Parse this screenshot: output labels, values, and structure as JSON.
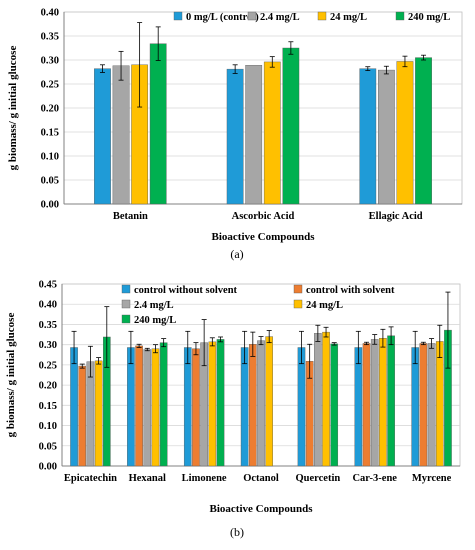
{
  "chart_data": [
    {
      "type": "bar",
      "caption": "(a)",
      "xlabel": "Bioactive Compounds",
      "ylabel": "g biomass/ g initial glucose",
      "ylim": [
        0,
        0.4
      ],
      "yticks": [
        "0.00",
        "0.05",
        "0.10",
        "0.15",
        "0.20",
        "0.25",
        "0.30",
        "0.35",
        "0.40"
      ],
      "grid": true,
      "legend_position": "top-right",
      "categories": [
        "Betanin",
        "Ascorbic Acid",
        "Ellagic Acid"
      ],
      "series": [
        {
          "name": "0 mg/L (control)",
          "color": "#1f9bd7",
          "values": [
            0.282,
            0.281,
            0.282
          ],
          "errors": [
            0.008,
            0.009,
            0.004
          ]
        },
        {
          "name": "2.4 mg/L",
          "color": "#a6a6a6",
          "values": [
            0.288,
            0.289,
            0.279
          ],
          "errors": [
            0.03,
            0.0,
            0.008
          ]
        },
        {
          "name": "24 mg/L",
          "color": "#ffc000",
          "values": [
            0.29,
            0.296,
            0.297
          ],
          "errors": [
            0.088,
            0.011,
            0.011
          ]
        },
        {
          "name": "240 mg/L",
          "color": "#00b050",
          "values": [
            0.334,
            0.325,
            0.305
          ],
          "errors": [
            0.035,
            0.013,
            0.005
          ]
        }
      ]
    },
    {
      "type": "bar",
      "caption": "(b)",
      "xlabel": "Bioactive Compounds",
      "ylabel": "g biomass/ g initial glucose",
      "ylim": [
        0,
        0.45
      ],
      "yticks": [
        "0.00",
        "0.05",
        "0.10",
        "0.15",
        "0.20",
        "0.25",
        "0.30",
        "0.35",
        "0.40",
        "0.45"
      ],
      "grid": true,
      "legend_position": "top",
      "categories": [
        "Epicatechin",
        "Hexanal",
        "Limonene",
        "Octanol",
        "Quercetin",
        "Car-3-ene",
        "Myrcene"
      ],
      "series": [
        {
          "name": "control without solvent",
          "color": "#1f9bd7",
          "values": [
            0.293,
            0.293,
            0.293,
            0.293,
            0.293,
            0.293,
            0.293
          ],
          "errors": [
            0.04,
            0.04,
            0.04,
            0.04,
            0.04,
            0.04,
            0.04
          ]
        },
        {
          "name": "control with solvent",
          "color": "#ed7d31",
          "values": [
            0.247,
            0.297,
            0.29,
            0.301,
            0.259,
            0.303,
            0.303
          ],
          "errors": [
            0.005,
            0.004,
            0.015,
            0.03,
            0.042,
            0.003,
            0.003
          ]
        },
        {
          "name": "2.4 mg/L",
          "color": "#a6a6a6",
          "values": [
            0.258,
            0.288,
            0.305,
            0.31,
            0.328,
            0.313,
            0.303
          ],
          "errors": [
            0.038,
            0.003,
            0.057,
            0.01,
            0.02,
            0.012,
            0.012
          ]
        },
        {
          "name": "24 mg/L",
          "color": "#ffc000",
          "values": [
            0.26,
            0.29,
            0.307,
            0.32,
            0.331,
            0.316,
            0.308
          ],
          "errors": [
            0.008,
            0.01,
            0.01,
            0.015,
            0.012,
            0.022,
            0.04
          ]
        },
        {
          "name": "240 mg/L",
          "color": "#00b050",
          "values": [
            0.319,
            0.305,
            0.313,
            null,
            0.302,
            0.322,
            0.336
          ],
          "errors": [
            0.075,
            0.01,
            0.006,
            null,
            0.003,
            0.022,
            0.094
          ]
        }
      ]
    }
  ]
}
